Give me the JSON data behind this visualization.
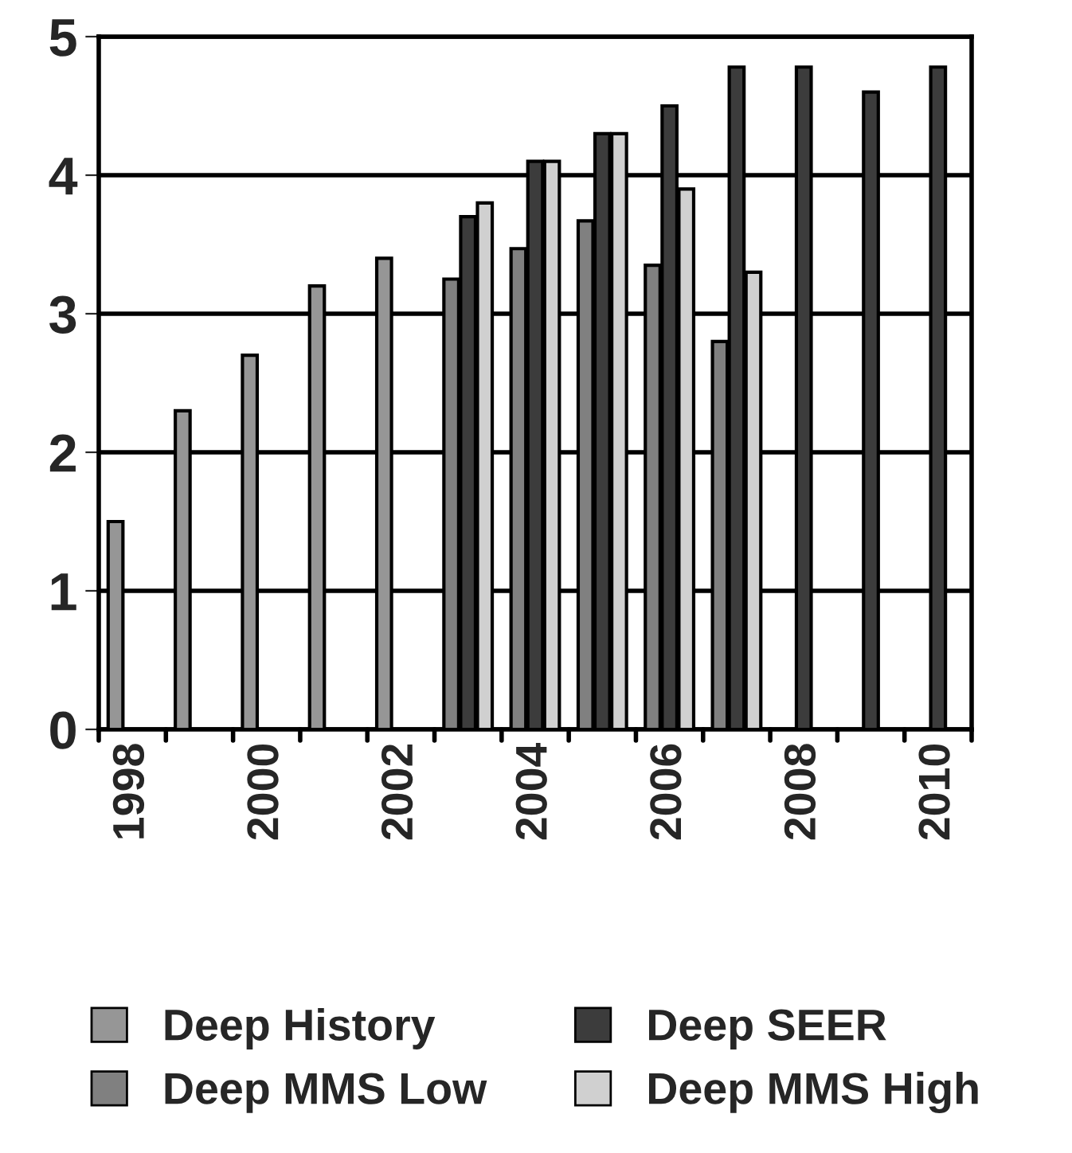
{
  "chart_data": {
    "type": "bar",
    "categories": [
      "1998",
      null,
      "2000",
      null,
      "2002",
      null,
      "2004",
      null,
      "2006",
      null,
      "2008",
      null,
      "2010"
    ],
    "series": [
      {
        "name": "Deep History",
        "color": "#969696",
        "values": [
          1.5,
          2.3,
          2.7,
          3.2,
          3.4,
          null,
          null,
          null,
          null,
          null,
          null,
          null,
          null
        ]
      },
      {
        "name": "Deep MMS Low",
        "color": "#808080",
        "values": [
          null,
          null,
          null,
          null,
          null,
          3.25,
          3.47,
          3.67,
          3.35,
          2.8,
          null,
          null,
          null
        ]
      },
      {
        "name": "Deep SEER",
        "color": "#3c3c3c",
        "values": [
          null,
          null,
          null,
          null,
          null,
          3.7,
          4.1,
          4.3,
          4.5,
          4.78,
          4.78,
          4.6,
          4.78
        ]
      },
      {
        "name": "Deep MMS High",
        "color": "#d0d0d0",
        "values": [
          null,
          null,
          null,
          null,
          null,
          3.8,
          4.1,
          4.3,
          3.9,
          3.3,
          null,
          null,
          null
        ]
      }
    ],
    "ylim": [
      0,
      5
    ],
    "yticks": [
      0,
      1,
      2,
      3,
      4,
      5
    ],
    "grid": "y",
    "legend": "bottom"
  }
}
